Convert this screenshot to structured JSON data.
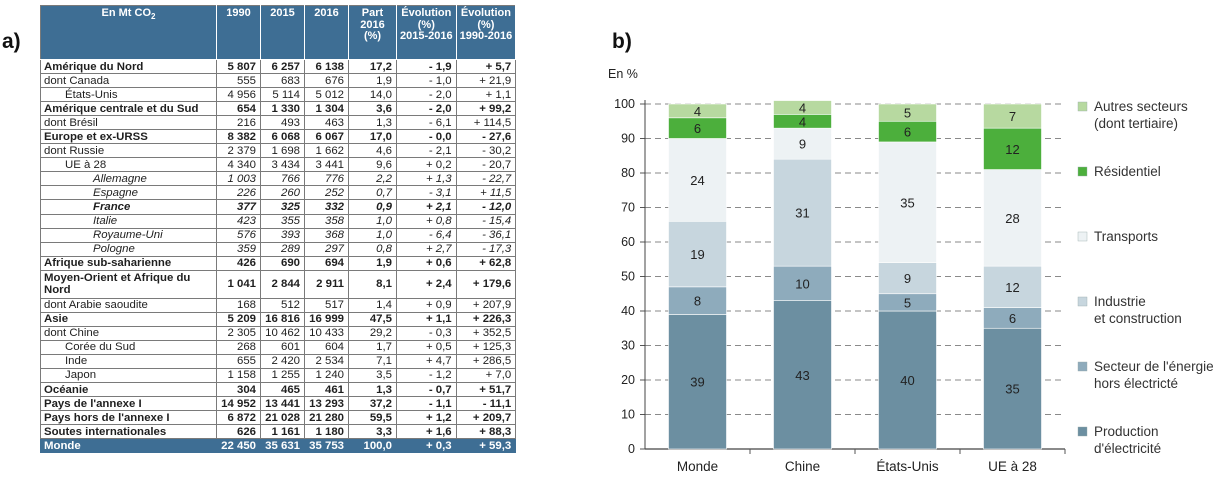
{
  "panel_a_label": "a)",
  "panel_b_label": "b)",
  "table": {
    "header": {
      "col0": [
        "En Mt CO",
        "2"
      ],
      "y1990": "1990",
      "y2015": "2015",
      "y2016": "2016",
      "part": [
        "Part",
        "2016",
        "(%)"
      ],
      "evo1": [
        "Évolution",
        "(%)",
        "2015-2016"
      ],
      "evo2": [
        "Évolution",
        "(%)",
        "1990-2016"
      ]
    },
    "rows": [
      {
        "label": "Amérique du Nord",
        "style": "bold",
        "values": [
          "5 807",
          "6 257",
          "6 138",
          "17,2",
          "- 1,9",
          "+ 5,7"
        ]
      },
      {
        "label": "dont Canada",
        "style": "",
        "values": [
          "555",
          "683",
          "676",
          "1,9",
          "- 1,0",
          "+ 21,9"
        ]
      },
      {
        "label": "États-Unis",
        "style": "ind1",
        "values": [
          "4 956",
          "5 114",
          "5 012",
          "14,0",
          "- 2,0",
          "+ 1,1"
        ]
      },
      {
        "label": "Amérique centrale et du Sud",
        "style": "bold",
        "values": [
          "654",
          "1 330",
          "1 304",
          "3,6",
          "- 2,0",
          "+ 99,2"
        ]
      },
      {
        "label": "dont Brésil",
        "style": "",
        "values": [
          "216",
          "493",
          "463",
          "1,3",
          "- 6,1",
          "+ 114,5"
        ]
      },
      {
        "label": "Europe et ex-URSS",
        "style": "bold",
        "values": [
          "8 382",
          "6 068",
          "6 067",
          "17,0",
          "- 0,0",
          "- 27,6"
        ]
      },
      {
        "label": "dont Russie",
        "style": "",
        "values": [
          "2 379",
          "1 698",
          "1 662",
          "4,6",
          "- 2,1",
          "- 30,2"
        ]
      },
      {
        "label": "UE à 28",
        "style": "ind1",
        "values": [
          "4 340",
          "3 434",
          "3 441",
          "9,6",
          "+ 0,2",
          "- 20,7"
        ]
      },
      {
        "label": "Allemagne",
        "style": "ind2 it",
        "values": [
          "1 003",
          "766",
          "776",
          "2,2",
          "+ 1,3",
          "- 22,7"
        ]
      },
      {
        "label": "Espagne",
        "style": "ind2 it",
        "values": [
          "226",
          "260",
          "252",
          "0,7",
          "- 3,1",
          "+ 11,5"
        ]
      },
      {
        "label": "France",
        "style": "ind2 it bold",
        "values": [
          "377",
          "325",
          "332",
          "0,9",
          "+ 2,1",
          "- 12,0"
        ]
      },
      {
        "label": "Italie",
        "style": "ind2 it",
        "values": [
          "423",
          "355",
          "358",
          "1,0",
          "+ 0,8",
          "- 15,4"
        ]
      },
      {
        "label": "Royaume-Uni",
        "style": "ind2 it",
        "values": [
          "576",
          "393",
          "368",
          "1,0",
          "- 6,4",
          "- 36,1"
        ]
      },
      {
        "label": "Pologne",
        "style": "ind2 it",
        "values": [
          "359",
          "289",
          "297",
          "0,8",
          "+ 2,7",
          "- 17,3"
        ]
      },
      {
        "label": "Afrique sub-saharienne",
        "style": "bold",
        "values": [
          "426",
          "690",
          "694",
          "1,9",
          "+ 0,6",
          "+ 62,8"
        ]
      },
      {
        "label": "Moyen-Orient et Afrique du Nord",
        "style": "bold tall",
        "values": [
          "1 041",
          "2 844",
          "2 911",
          "8,1",
          "+ 2,4",
          "+ 179,6"
        ]
      },
      {
        "label": "dont Arabie saoudite",
        "style": "",
        "values": [
          "168",
          "512",
          "517",
          "1,4",
          "+ 0,9",
          "+ 207,9"
        ]
      },
      {
        "label": "Asie",
        "style": "bold",
        "values": [
          "5 209",
          "16 816",
          "16 999",
          "47,5",
          "+ 1,1",
          "+ 226,3"
        ]
      },
      {
        "label": "dont Chine",
        "style": "",
        "values": [
          "2 305",
          "10 462",
          "10 433",
          "29,2",
          "- 0,3",
          "+ 352,5"
        ]
      },
      {
        "label": "Corée du Sud",
        "style": "ind1",
        "values": [
          "268",
          "601",
          "604",
          "1,7",
          "+ 0,5",
          "+ 125,3"
        ]
      },
      {
        "label": "Inde",
        "style": "ind1",
        "values": [
          "655",
          "2 420",
          "2 534",
          "7,1",
          "+ 4,7",
          "+ 286,5"
        ]
      },
      {
        "label": "Japon",
        "style": "ind1",
        "values": [
          "1 158",
          "1 255",
          "1 240",
          "3,5",
          "- 1,2",
          "+ 7,0"
        ]
      },
      {
        "label": "Océanie",
        "style": "bold",
        "values": [
          "304",
          "465",
          "461",
          "1,3",
          "- 0,7",
          "+ 51,7"
        ]
      },
      {
        "label": "Pays de l'annexe I",
        "style": "bold",
        "values": [
          "14 952",
          "13 441",
          "13 293",
          "37,2",
          "- 1,1",
          "- 11,1"
        ]
      },
      {
        "label": "Pays hors de l'annexe I",
        "style": "bold",
        "values": [
          "6 872",
          "21 028",
          "21 280",
          "59,5",
          "+ 1,2",
          "+ 209,7"
        ]
      },
      {
        "label": "Soutes internationales",
        "style": "bold",
        "values": [
          "626",
          "1 161",
          "1 180",
          "3,3",
          "+ 1,6",
          "+ 88,3"
        ]
      },
      {
        "label": "Monde",
        "style": "last",
        "values": [
          "22 450",
          "35 631",
          "35 753",
          "100,0",
          "+ 0,3",
          "+ 59,3"
        ]
      }
    ]
  },
  "chart_data": {
    "type": "bar",
    "stacked": true,
    "unit_label": "En %",
    "categories": [
      "Monde",
      "Chine",
      "États-Unis",
      "UE à 28"
    ],
    "ylim": [
      0,
      100
    ],
    "yticks": [
      0,
      10,
      20,
      30,
      40,
      50,
      60,
      70,
      80,
      90,
      100
    ],
    "grid": "dashed horizontal",
    "legend_position": "right",
    "series": [
      {
        "name": "Production d'électricité",
        "label_lines": [
          "Production",
          "d'électricité"
        ],
        "color": "#6c8fa1",
        "values": [
          39,
          43,
          40,
          35
        ]
      },
      {
        "name": "Secteur de l'énergie hors électricté",
        "label_lines": [
          "Secteur de l'énergie",
          "hors électricté"
        ],
        "color": "#8eabbc",
        "values": [
          8,
          10,
          5,
          6
        ]
      },
      {
        "name": "Industrie et construction",
        "label_lines": [
          "Industrie",
          "et construction"
        ],
        "color": "#c7d6de",
        "values": [
          19,
          31,
          9,
          12
        ]
      },
      {
        "name": "Transports",
        "label_lines": [
          "Transports"
        ],
        "color": "#edf2f4",
        "values": [
          24,
          9,
          35,
          28
        ]
      },
      {
        "name": "Résidentiel",
        "label_lines": [
          "Résidentiel"
        ],
        "color": "#4caf3c",
        "values": [
          6,
          4,
          6,
          12
        ]
      },
      {
        "name": "Autres secteurs (dont tertiaire)",
        "label_lines": [
          "Autres secteurs",
          "(dont tertiaire)"
        ],
        "color": "#b7d9a0",
        "values": [
          4,
          4,
          5,
          7
        ]
      }
    ]
  }
}
